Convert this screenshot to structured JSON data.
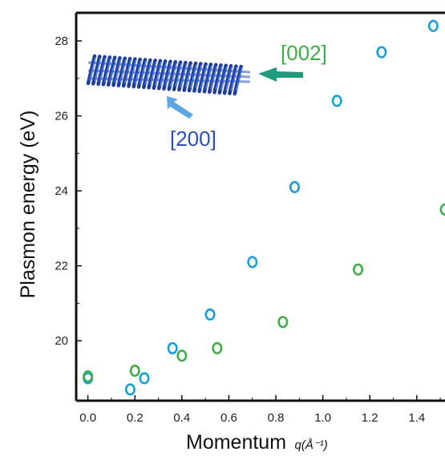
{
  "chart_data": {
    "type": "scatter",
    "title": "",
    "xlabel": "Momentum",
    "xlabel_unit": "q(Å⁻¹)",
    "ylabel": "Plasmon energy (eV)",
    "xlim": [
      -0.05,
      1.52
    ],
    "ylim": [
      18.4,
      28.75
    ],
    "xticks": [
      "0.0",
      "0.2",
      "0.4",
      "0.6",
      "0.8",
      "1.0",
      "1.2",
      "1.4"
    ],
    "yticks": [
      "20",
      "22",
      "24",
      "26",
      "28"
    ],
    "grid": false,
    "series": [
      {
        "color": "#1a9fd6",
        "x": [
          0.0,
          0.18,
          0.24,
          0.36,
          0.52,
          0.7,
          0.88,
          1.06,
          1.25,
          1.47
        ],
        "y": [
          19.0,
          18.7,
          19.0,
          19.8,
          20.7,
          22.1,
          24.1,
          26.4,
          27.7,
          28.4
        ]
      },
      {
        "color": "#3fae49",
        "x": [
          0.0,
          0.2,
          0.4,
          0.55,
          0.83,
          1.15,
          1.52
        ],
        "y": [
          19.05,
          19.2,
          19.6,
          19.8,
          20.5,
          21.9,
          23.5
        ]
      }
    ],
    "annotations": [
      {
        "text": "[002]",
        "color": "#3fae49"
      },
      {
        "text": "[200]",
        "color": "#2a4fb8"
      }
    ]
  }
}
